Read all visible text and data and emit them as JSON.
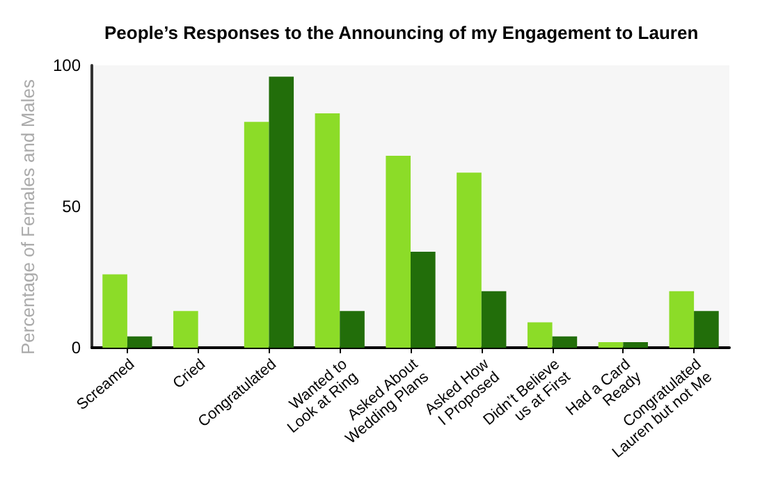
{
  "chart_data": {
    "type": "bar",
    "title": "People’s Responses to the Announcing of my Engagement to Lauren",
    "ylabel": "Percentage of Females and Males",
    "categories": [
      "Screamed",
      "Cried",
      "Congratulated",
      "Wanted to Look at Ring",
      "Asked About Wedding Plans",
      "Asked How I Proposed",
      "Didn’t Believe us at First",
      "Had a Card Ready",
      "Congratulated Lauren but not Me"
    ],
    "series": [
      {
        "color": "#8cdc28",
        "values": [
          26,
          13,
          80,
          83,
          68,
          62,
          9,
          2,
          20
        ]
      },
      {
        "color": "#226e0a",
        "values": [
          4,
          0,
          96,
          13,
          34,
          20,
          4,
          2,
          13
        ]
      }
    ],
    "ylim": [
      0,
      100
    ],
    "yticks": [
      0,
      50,
      100
    ],
    "grid": false
  }
}
